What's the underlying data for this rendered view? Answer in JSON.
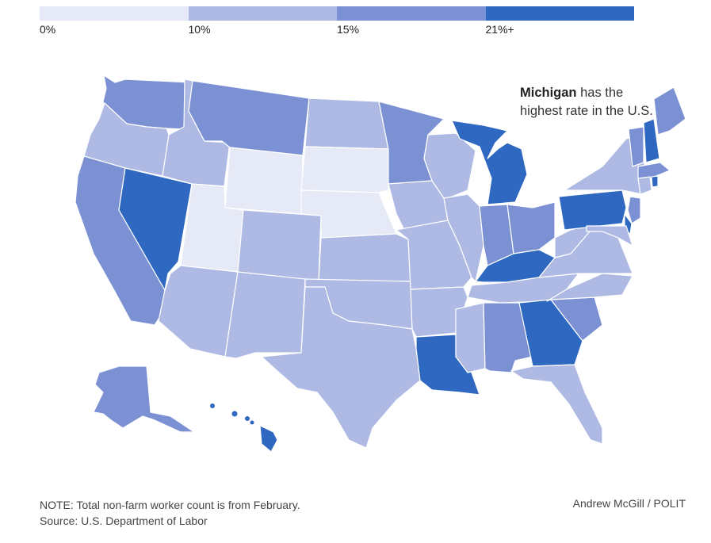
{
  "colors": {
    "bin0": "#e6e9f6",
    "bin1": "#aebae3",
    "bin2": "#7b91d3",
    "bin3": "#2f68c1",
    "border": "#ffffff"
  },
  "legend": {
    "bins": [
      {
        "label": "0%",
        "color": "#e6e9f6"
      },
      {
        "label": "10%",
        "color": "#aebae3"
      },
      {
        "label": "15%",
        "color": "#7b91d3"
      },
      {
        "label": "21%+",
        "color": "#2f68c1"
      }
    ]
  },
  "map": {
    "states": [
      {
        "name": "Washington",
        "bin": 2
      },
      {
        "name": "Oregon",
        "bin": 1
      },
      {
        "name": "California",
        "bin": 2
      },
      {
        "name": "Nevada",
        "bin": 3
      },
      {
        "name": "Idaho",
        "bin": 1
      },
      {
        "name": "Montana",
        "bin": 2
      },
      {
        "name": "Wyoming",
        "bin": 0
      },
      {
        "name": "Utah",
        "bin": 0
      },
      {
        "name": "Arizona",
        "bin": 1
      },
      {
        "name": "Colorado",
        "bin": 1
      },
      {
        "name": "New Mexico",
        "bin": 1
      },
      {
        "name": "North Dakota",
        "bin": 1
      },
      {
        "name": "South Dakota",
        "bin": 0
      },
      {
        "name": "Nebraska",
        "bin": 0
      },
      {
        "name": "Kansas",
        "bin": 1
      },
      {
        "name": "Oklahoma",
        "bin": 1
      },
      {
        "name": "Texas",
        "bin": 1
      },
      {
        "name": "Minnesota",
        "bin": 2
      },
      {
        "name": "Iowa",
        "bin": 1
      },
      {
        "name": "Missouri",
        "bin": 1
      },
      {
        "name": "Arkansas",
        "bin": 1
      },
      {
        "name": "Louisiana",
        "bin": 3
      },
      {
        "name": "Wisconsin",
        "bin": 1
      },
      {
        "name": "Illinois",
        "bin": 1
      },
      {
        "name": "Michigan",
        "bin": 3
      },
      {
        "name": "Indiana",
        "bin": 2
      },
      {
        "name": "Ohio",
        "bin": 2
      },
      {
        "name": "Kentucky",
        "bin": 3
      },
      {
        "name": "Tennessee",
        "bin": 1
      },
      {
        "name": "Mississippi",
        "bin": 1
      },
      {
        "name": "Alabama",
        "bin": 2
      },
      {
        "name": "Georgia",
        "bin": 3
      },
      {
        "name": "Florida",
        "bin": 1
      },
      {
        "name": "South Carolina",
        "bin": 2
      },
      {
        "name": "North Carolina",
        "bin": 1
      },
      {
        "name": "Virginia",
        "bin": 1
      },
      {
        "name": "West Virginia",
        "bin": 1
      },
      {
        "name": "Pennsylvania",
        "bin": 3
      },
      {
        "name": "New York",
        "bin": 1
      },
      {
        "name": "Maine",
        "bin": 2
      },
      {
        "name": "Vermont",
        "bin": 2
      },
      {
        "name": "New Hampshire",
        "bin": 3
      },
      {
        "name": "Massachusetts",
        "bin": 2
      },
      {
        "name": "Connecticut",
        "bin": 1
      },
      {
        "name": "Rhode Island",
        "bin": 3
      },
      {
        "name": "New Jersey",
        "bin": 2
      },
      {
        "name": "Delaware",
        "bin": 3
      },
      {
        "name": "Maryland",
        "bin": 1
      },
      {
        "name": "Alaska",
        "bin": 2
      },
      {
        "name": "Hawaii",
        "bin": 3
      }
    ]
  },
  "annotation": {
    "bold": "Michigan",
    "rest": " has the highest rate in the U.S."
  },
  "footer": {
    "note": "NOTE: Total non-farm worker count is from February.",
    "source": "Source: U.S. Department of Labor",
    "credit": "Andrew McGill / POLIT"
  }
}
